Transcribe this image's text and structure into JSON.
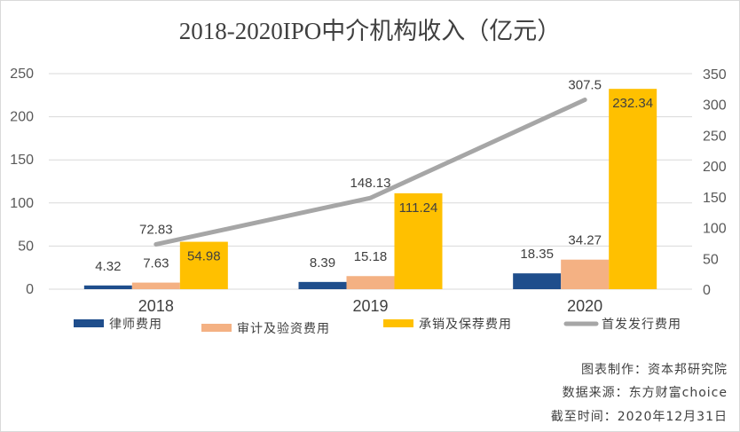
{
  "chart_data": {
    "type": "bar",
    "title": "2018-2020IPO中介机构收入（亿元）",
    "categories": [
      "2018",
      "2019",
      "2020"
    ],
    "left_axis": {
      "ylim": [
        0,
        250
      ],
      "ticks": [
        "0",
        "50",
        "100",
        "150",
        "200",
        "250"
      ]
    },
    "right_axis": {
      "ylim": [
        0,
        350
      ],
      "ticks": [
        "0",
        "50",
        "100",
        "150",
        "200",
        "250",
        "300",
        "350"
      ]
    },
    "grid": true,
    "legend_position": "bottom",
    "series": [
      {
        "name": "律师费用",
        "type": "bar",
        "axis": "left",
        "color": "#1f4e8c",
        "values": [
          4.32,
          8.39,
          18.35
        ],
        "labels": [
          "4.32",
          "8.39",
          "18.35"
        ]
      },
      {
        "name": "审计及验资费用",
        "type": "bar",
        "axis": "left",
        "color": "#f4b183",
        "values": [
          7.63,
          15.18,
          34.27
        ],
        "labels": [
          "7.63",
          "15.18",
          "34.27"
        ]
      },
      {
        "name": "承销及保荐费用",
        "type": "bar",
        "axis": "left",
        "color": "#ffc000",
        "values": [
          54.98,
          111.24,
          232.34
        ],
        "labels": [
          "54.98",
          "111.24",
          "232.34"
        ]
      },
      {
        "name": "首发发行费用",
        "type": "line",
        "axis": "right",
        "color": "#a6a6a6",
        "values": [
          72.83,
          148.13,
          307.5
        ],
        "labels": [
          "72.83",
          "148.13",
          "307.5"
        ]
      }
    ]
  },
  "notes": {
    "maker": "图表制作：资本邦研究院",
    "source": "数据来源：东方财富choice",
    "date": "截至时间：2020年12月31日"
  }
}
